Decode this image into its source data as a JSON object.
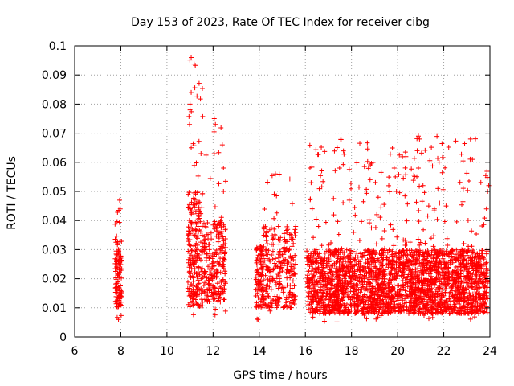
{
  "chart_data": {
    "type": "scatter",
    "title": "Day 153 of 2023, Rate Of TEC Index for receiver cibg",
    "xlabel": "GPS time / hours",
    "ylabel": "ROTI / TECUs",
    "xlim": [
      6,
      24
    ],
    "ylim": [
      0,
      0.1
    ],
    "xticks": [
      "6",
      "8",
      "10",
      "12",
      "14",
      "16",
      "18",
      "20",
      "22",
      "24"
    ],
    "yticks": [
      "0",
      "0.01",
      "0.02",
      "0.03",
      "0.04",
      "0.05",
      "0.06",
      "0.07",
      "0.08",
      "0.09",
      "0.1"
    ],
    "grid": true,
    "marker": "+",
    "color": "#ff0000",
    "clusters": [
      {
        "x": [
          7.75,
          8.05
        ],
        "y_range": [
          0.006,
          0.047
        ],
        "y_typical": [
          0.01,
          0.035
        ],
        "n": 110
      },
      {
        "x": [
          10.9,
          11.55
        ],
        "y_range": [
          0.006,
          0.096
        ],
        "y_typical": [
          0.01,
          0.05
        ],
        "n": 240
      },
      {
        "x": [
          11.6,
          12.55
        ],
        "y_range": [
          0.007,
          0.075
        ],
        "y_typical": [
          0.012,
          0.04
        ],
        "n": 220
      },
      {
        "x": [
          13.85,
          14.2
        ],
        "y_range": [
          0.006,
          0.04
        ],
        "y_typical": [
          0.01,
          0.032
        ],
        "n": 110
      },
      {
        "x": [
          14.2,
          15.6
        ],
        "y_range": [
          0.008,
          0.056
        ],
        "y_typical": [
          0.01,
          0.038
        ],
        "n": 260
      },
      {
        "x": [
          16.05,
          23.9
        ],
        "y_range": [
          0.005,
          0.069
        ],
        "y_typical": [
          0.008,
          0.03
        ],
        "n": 2600
      }
    ],
    "outliers": [
      {
        "x": 11.05,
        "y": 0.096
      },
      {
        "x": 11.05,
        "y": 0.084
      },
      {
        "x": 11.0,
        "y": 0.08
      },
      {
        "x": 11.0,
        "y": 0.078
      },
      {
        "x": 10.98,
        "y": 0.073
      },
      {
        "x": 11.05,
        "y": 0.065
      },
      {
        "x": 12.05,
        "y": 0.075
      },
      {
        "x": 12.1,
        "y": 0.073
      },
      {
        "x": 12.05,
        "y": 0.063
      },
      {
        "x": 12.4,
        "y": 0.066
      },
      {
        "x": 12.45,
        "y": 0.058
      },
      {
        "x": 12.45,
        "y": 0.05
      },
      {
        "x": 14.7,
        "y": 0.056
      },
      {
        "x": 14.65,
        "y": 0.049
      },
      {
        "x": 16.2,
        "y": 0.058
      },
      {
        "x": 16.25,
        "y": 0.053
      },
      {
        "x": 17.9,
        "y": 0.047
      },
      {
        "x": 19.85,
        "y": 0.058
      },
      {
        "x": 19.9,
        "y": 0.055
      },
      {
        "x": 19.95,
        "y": 0.05
      },
      {
        "x": 20.9,
        "y": 0.069
      },
      {
        "x": 20.95,
        "y": 0.068
      },
      {
        "x": 20.85,
        "y": 0.064
      },
      {
        "x": 20.9,
        "y": 0.058
      },
      {
        "x": 21.1,
        "y": 0.052
      },
      {
        "x": 21.35,
        "y": 0.045
      },
      {
        "x": 22.1,
        "y": 0.045
      },
      {
        "x": 23.95,
        "y": 0.052
      },
      {
        "x": 23.9,
        "y": 0.05
      },
      {
        "x": 23.85,
        "y": 0.044
      },
      {
        "x": 7.95,
        "y": 0.047
      },
      {
        "x": 7.9,
        "y": 0.006
      },
      {
        "x": 13.95,
        "y": 0.006
      }
    ]
  }
}
